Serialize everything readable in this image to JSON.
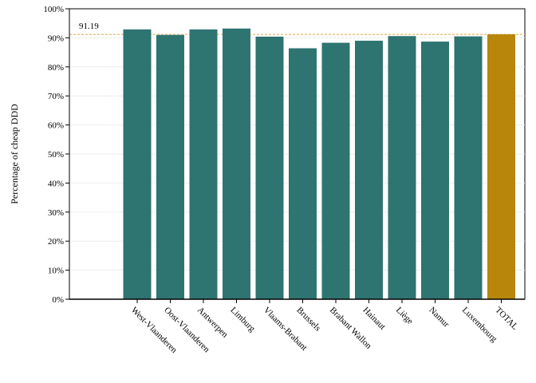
{
  "chart_data": {
    "type": "bar",
    "title": "",
    "xlabel": "",
    "ylabel": "Percentage of cheap DDD",
    "ylim": [
      0,
      100
    ],
    "yticks": [
      "0%",
      "10%",
      "20%",
      "30%",
      "40%",
      "50%",
      "60%",
      "70%",
      "80%",
      "90%",
      "100%"
    ],
    "categories": [
      "West-Vlaanderen",
      "Oost-Vlaanderen",
      "Antwerpen",
      "Limburg",
      "Vlaams-Brabant",
      "Brussels",
      "Brabant Wallon",
      "Hainaut",
      "Liège",
      "Namur",
      "Luxembourg",
      "TOTAL"
    ],
    "values": [
      92.9,
      91.0,
      92.9,
      93.2,
      90.4,
      86.4,
      88.3,
      89.0,
      90.6,
      88.7,
      90.5,
      91.2
    ],
    "reference_line": {
      "value": 91.19,
      "label": "91.19"
    },
    "grid": "horizontal",
    "colors": {
      "bar": "#2e7471",
      "total_bar": "#b8860b",
      "reference_line": "#e0a84a",
      "grid": "#eeeeee"
    }
  }
}
